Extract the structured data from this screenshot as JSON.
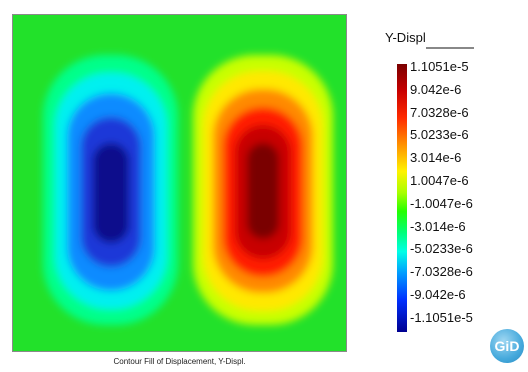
{
  "plot": {
    "caption": "Contour Fill of Displacement, Y-Displ.",
    "field_description": "negative lobe left (blue), positive lobe right (red), near-zero green background"
  },
  "legend": {
    "title": "Y-Displ",
    "labels": [
      "1.1051e-5",
      "9.042e-6",
      "7.0328e-6",
      "5.0233e-6",
      "3.014e-6",
      "1.0047e-6",
      "-1.0047e-6",
      "-3.014e-6",
      "-5.0233e-6",
      "-7.0328e-6",
      "-9.042e-6",
      "-1.1051e-5"
    ],
    "colors": [
      "#7a0000",
      "#c80000",
      "#ff2a00",
      "#ff9000",
      "#fff200",
      "#a8ff00",
      "#24ff00",
      "#00ff7a",
      "#00ffe6",
      "#009cff",
      "#0030ff",
      "#000090"
    ]
  },
  "logo": {
    "text": "GiD"
  }
}
